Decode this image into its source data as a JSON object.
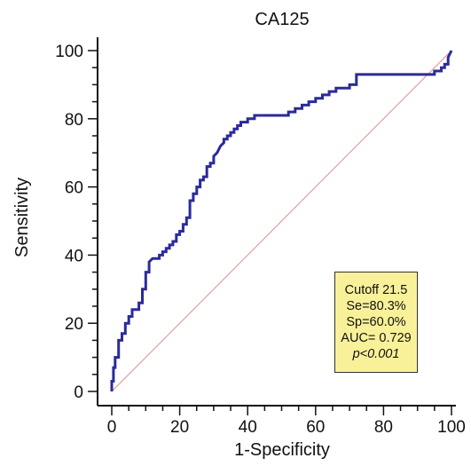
{
  "chart_data": {
    "type": "line",
    "title": "CA125",
    "xlabel": "1-Specificity",
    "ylabel": "Sensitivity",
    "xlim": [
      0,
      100
    ],
    "ylim": [
      0,
      100
    ],
    "x_ticks": [
      "0",
      "20",
      "40",
      "60",
      "80",
      "100"
    ],
    "y_ticks": [
      "0",
      "20",
      "40",
      "60",
      "80",
      "100"
    ],
    "grid": false,
    "series": [
      {
        "role": "roc-curve",
        "color": "#2b2b99",
        "x": [
          0,
          0,
          0.5,
          0.5,
          1,
          1,
          2,
          2,
          3,
          3,
          4,
          4,
          5,
          5,
          6,
          6,
          8,
          8,
          9,
          9,
          10,
          10,
          11,
          11,
          12,
          13,
          14,
          14,
          15,
          15,
          16,
          16,
          17,
          17,
          18,
          18,
          19,
          19,
          20,
          20,
          21,
          21,
          22,
          22,
          23,
          23,
          24,
          24,
          25,
          25,
          26,
          26,
          27,
          27,
          28,
          28,
          29,
          29,
          30,
          30,
          31,
          32,
          33,
          33,
          34,
          34,
          35,
          35,
          36,
          36,
          37,
          37,
          38,
          38,
          40,
          40,
          42,
          42,
          44,
          46,
          48,
          50,
          52,
          52,
          54,
          54,
          56,
          56,
          58,
          58,
          60,
          60,
          62,
          62,
          64,
          64,
          66,
          66,
          70,
          70,
          72,
          72,
          74,
          78,
          82,
          86,
          90,
          94,
          95,
          95,
          97,
          97,
          98,
          98,
          99,
          99,
          100
        ],
        "y": [
          0,
          3,
          3,
          7,
          7,
          10,
          10,
          15,
          15,
          17,
          17,
          20,
          20,
          22,
          22,
          24,
          24,
          26,
          26,
          30,
          30,
          35,
          35,
          38,
          39,
          39,
          39,
          40,
          40,
          41,
          41,
          42,
          42,
          43,
          43,
          44,
          44,
          46,
          46,
          47,
          47,
          49,
          49,
          51,
          51,
          56,
          56,
          58,
          58,
          60,
          60,
          62,
          62,
          63,
          63,
          66,
          66,
          67,
          67,
          69,
          70,
          72,
          73,
          74,
          74,
          75,
          75,
          76,
          76,
          77,
          77,
          78,
          78,
          79,
          79,
          80,
          80,
          81,
          81,
          81,
          81,
          81,
          81,
          82,
          82,
          83,
          83,
          84,
          84,
          85,
          85,
          86,
          86,
          87,
          87,
          88,
          88,
          89,
          89,
          90,
          90,
          93,
          93,
          93,
          93,
          93,
          93,
          93,
          93,
          94,
          94,
          95,
          95,
          96,
          96,
          98,
          100
        ]
      },
      {
        "role": "reference-diagonal",
        "color": "#e88a8a",
        "x": [
          0,
          100
        ],
        "y": [
          0,
          100
        ]
      }
    ],
    "annotation": {
      "lines": [
        "Cutoff 21.5",
        "Se=80.3%",
        "Sp=60.0%",
        "AUC= 0.729",
        "p<0.001"
      ],
      "background": "#f9f199",
      "location": "lower-right"
    }
  }
}
